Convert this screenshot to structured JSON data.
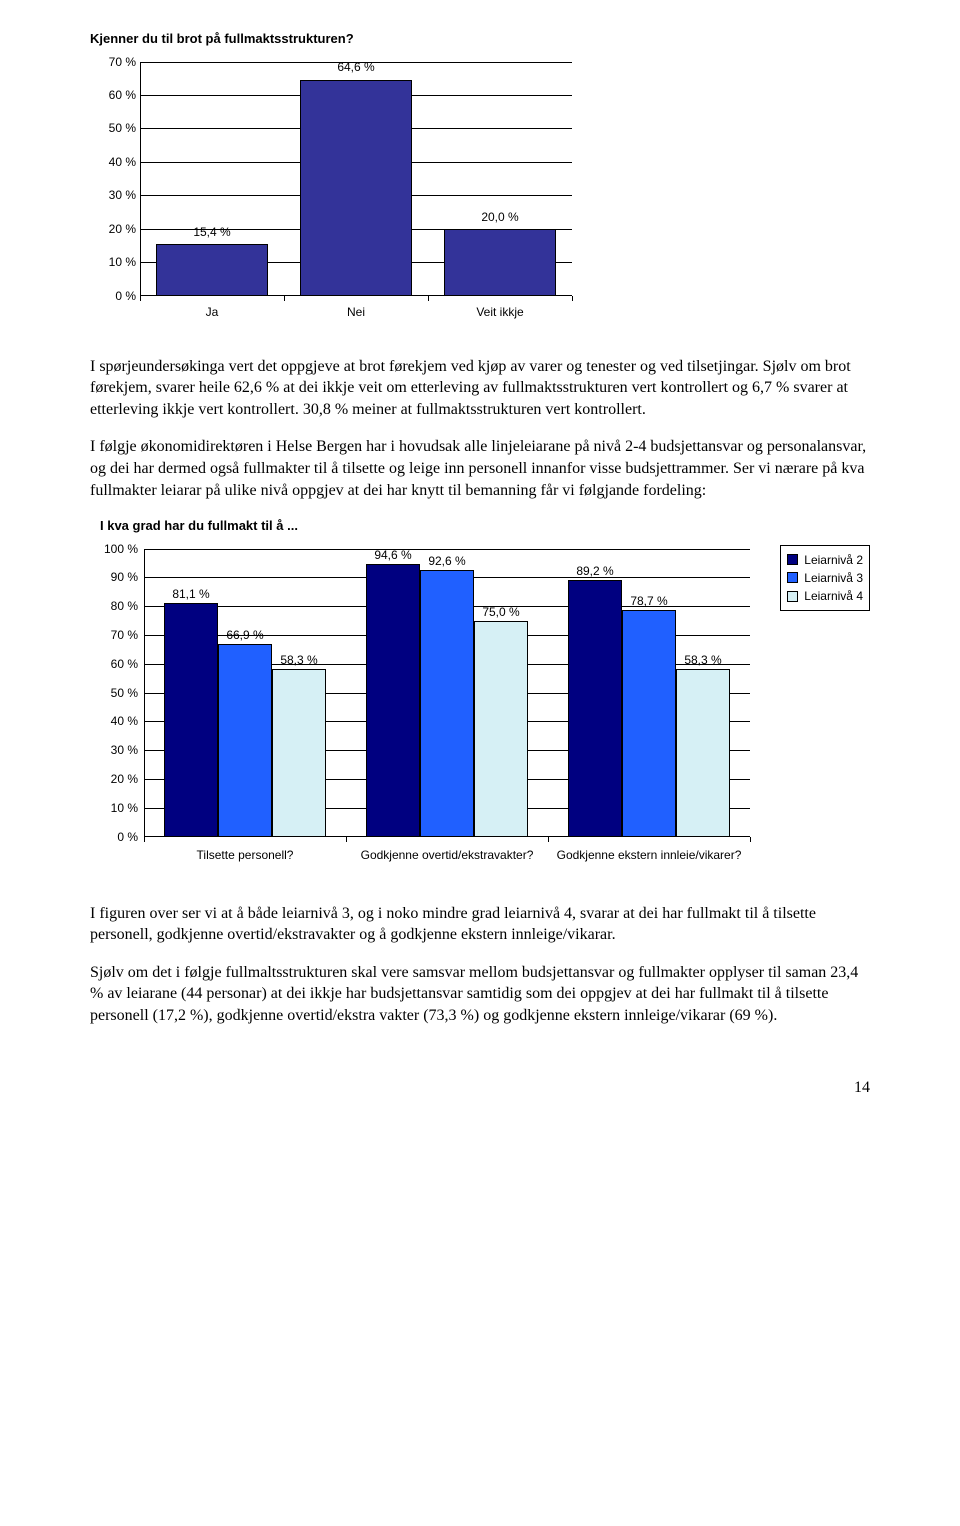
{
  "chart1": {
    "title": "Kjenner du til brot på fullmaktsstrukturen?",
    "type": "bar",
    "ymax": 70,
    "ystep": 10,
    "yticks": [
      "0 %",
      "10 %",
      "20 %",
      "30 %",
      "40 %",
      "50 %",
      "60 %",
      "70 %"
    ],
    "bar_color": "#333399",
    "bars": [
      {
        "category": "Ja",
        "value": 15.4,
        "label": "15,4 %"
      },
      {
        "category": "Nei",
        "value": 64.6,
        "label": "64,6 %"
      },
      {
        "category": "Veit ikkje",
        "value": 20.0,
        "label": "20,0 %"
      }
    ]
  },
  "para1": "I spørjeundersøkinga vert det oppgjeve at brot førekjem ved kjøp av varer og tenester og ved tilsetjingar. Sjølv om brot førekjem, svarer heile 62,6 % at dei ikkje veit om etterleving av fullmaktsstrukturen vert kontrollert og 6,7 % svarer at etterleving ikkje vert kontrollert. 30,8 % meiner at fullmaktsstrukturen vert kontrollert.",
  "para2": "I følgje økonomidirektøren i Helse Bergen har i hovudsak alle linjeleiarane på nivå 2-4 budsjettansvar og personalansvar, og dei har dermed også fullmakter til å tilsette og leige inn personell innanfor visse budsjettrammer. Ser vi nærare på kva fullmakter leiarar på ulike nivå oppgjev at dei har knytt til bemanning får vi følgjande fordeling:",
  "chart2": {
    "title": "I kva grad har du fullmakt til å ...",
    "type": "grouped-bar",
    "ymax": 100,
    "ystep": 10,
    "yticks": [
      "0 %",
      "10 %",
      "20 %",
      "30 %",
      "40 %",
      "50 %",
      "60 %",
      "70 %",
      "80 %",
      "90 %",
      "100 %"
    ],
    "series": [
      {
        "name": "Leiarnivå 2",
        "color": "#000080"
      },
      {
        "name": "Leiarnivå 3",
        "color": "#2060ff"
      },
      {
        "name": "Leiarnivå 4",
        "color": "#d6f0f5"
      }
    ],
    "groups": [
      {
        "category": "Tilsette personell?",
        "values": [
          {
            "v": 81.1,
            "label": "81,1 %"
          },
          {
            "v": 66.9,
            "label": "66,9 %"
          },
          {
            "v": 58.3,
            "label": "58,3 %"
          }
        ]
      },
      {
        "category": "Godkjenne overtid/ekstravakter?",
        "values": [
          {
            "v": 94.6,
            "label": "94,6 %"
          },
          {
            "v": 92.6,
            "label": "92,6 %"
          },
          {
            "v": 75.0,
            "label": "75,0 %"
          }
        ]
      },
      {
        "category": "Godkjenne ekstern innleie/vikarer?",
        "values": [
          {
            "v": 89.2,
            "label": "89,2 %"
          },
          {
            "v": 78.7,
            "label": "78,7 %"
          },
          {
            "v": 58.3,
            "label": "58,3 %"
          }
        ]
      }
    ]
  },
  "para3": "I figuren over ser vi at å både leiarnivå 3, og i noko mindre grad leiarnivå 4, svarar at dei har fullmakt til å tilsette personell, godkjenne overtid/ekstravakter og å godkjenne ekstern innleige/vikarar.",
  "para4": "Sjølv om det i følgje fullmaltsstrukturen skal vere samsvar mellom budsjettansvar og fullmakter opplyser til saman 23,4 % av leiarane (44 personar) at dei ikkje har budsjettansvar samtidig som dei oppgjev at dei har fullmakt til å tilsette personell (17,2 %), godkjenne overtid/ekstra vakter (73,3 %) og godkjenne ekstern innleige/vikarar (69 %).",
  "page_number": "14"
}
